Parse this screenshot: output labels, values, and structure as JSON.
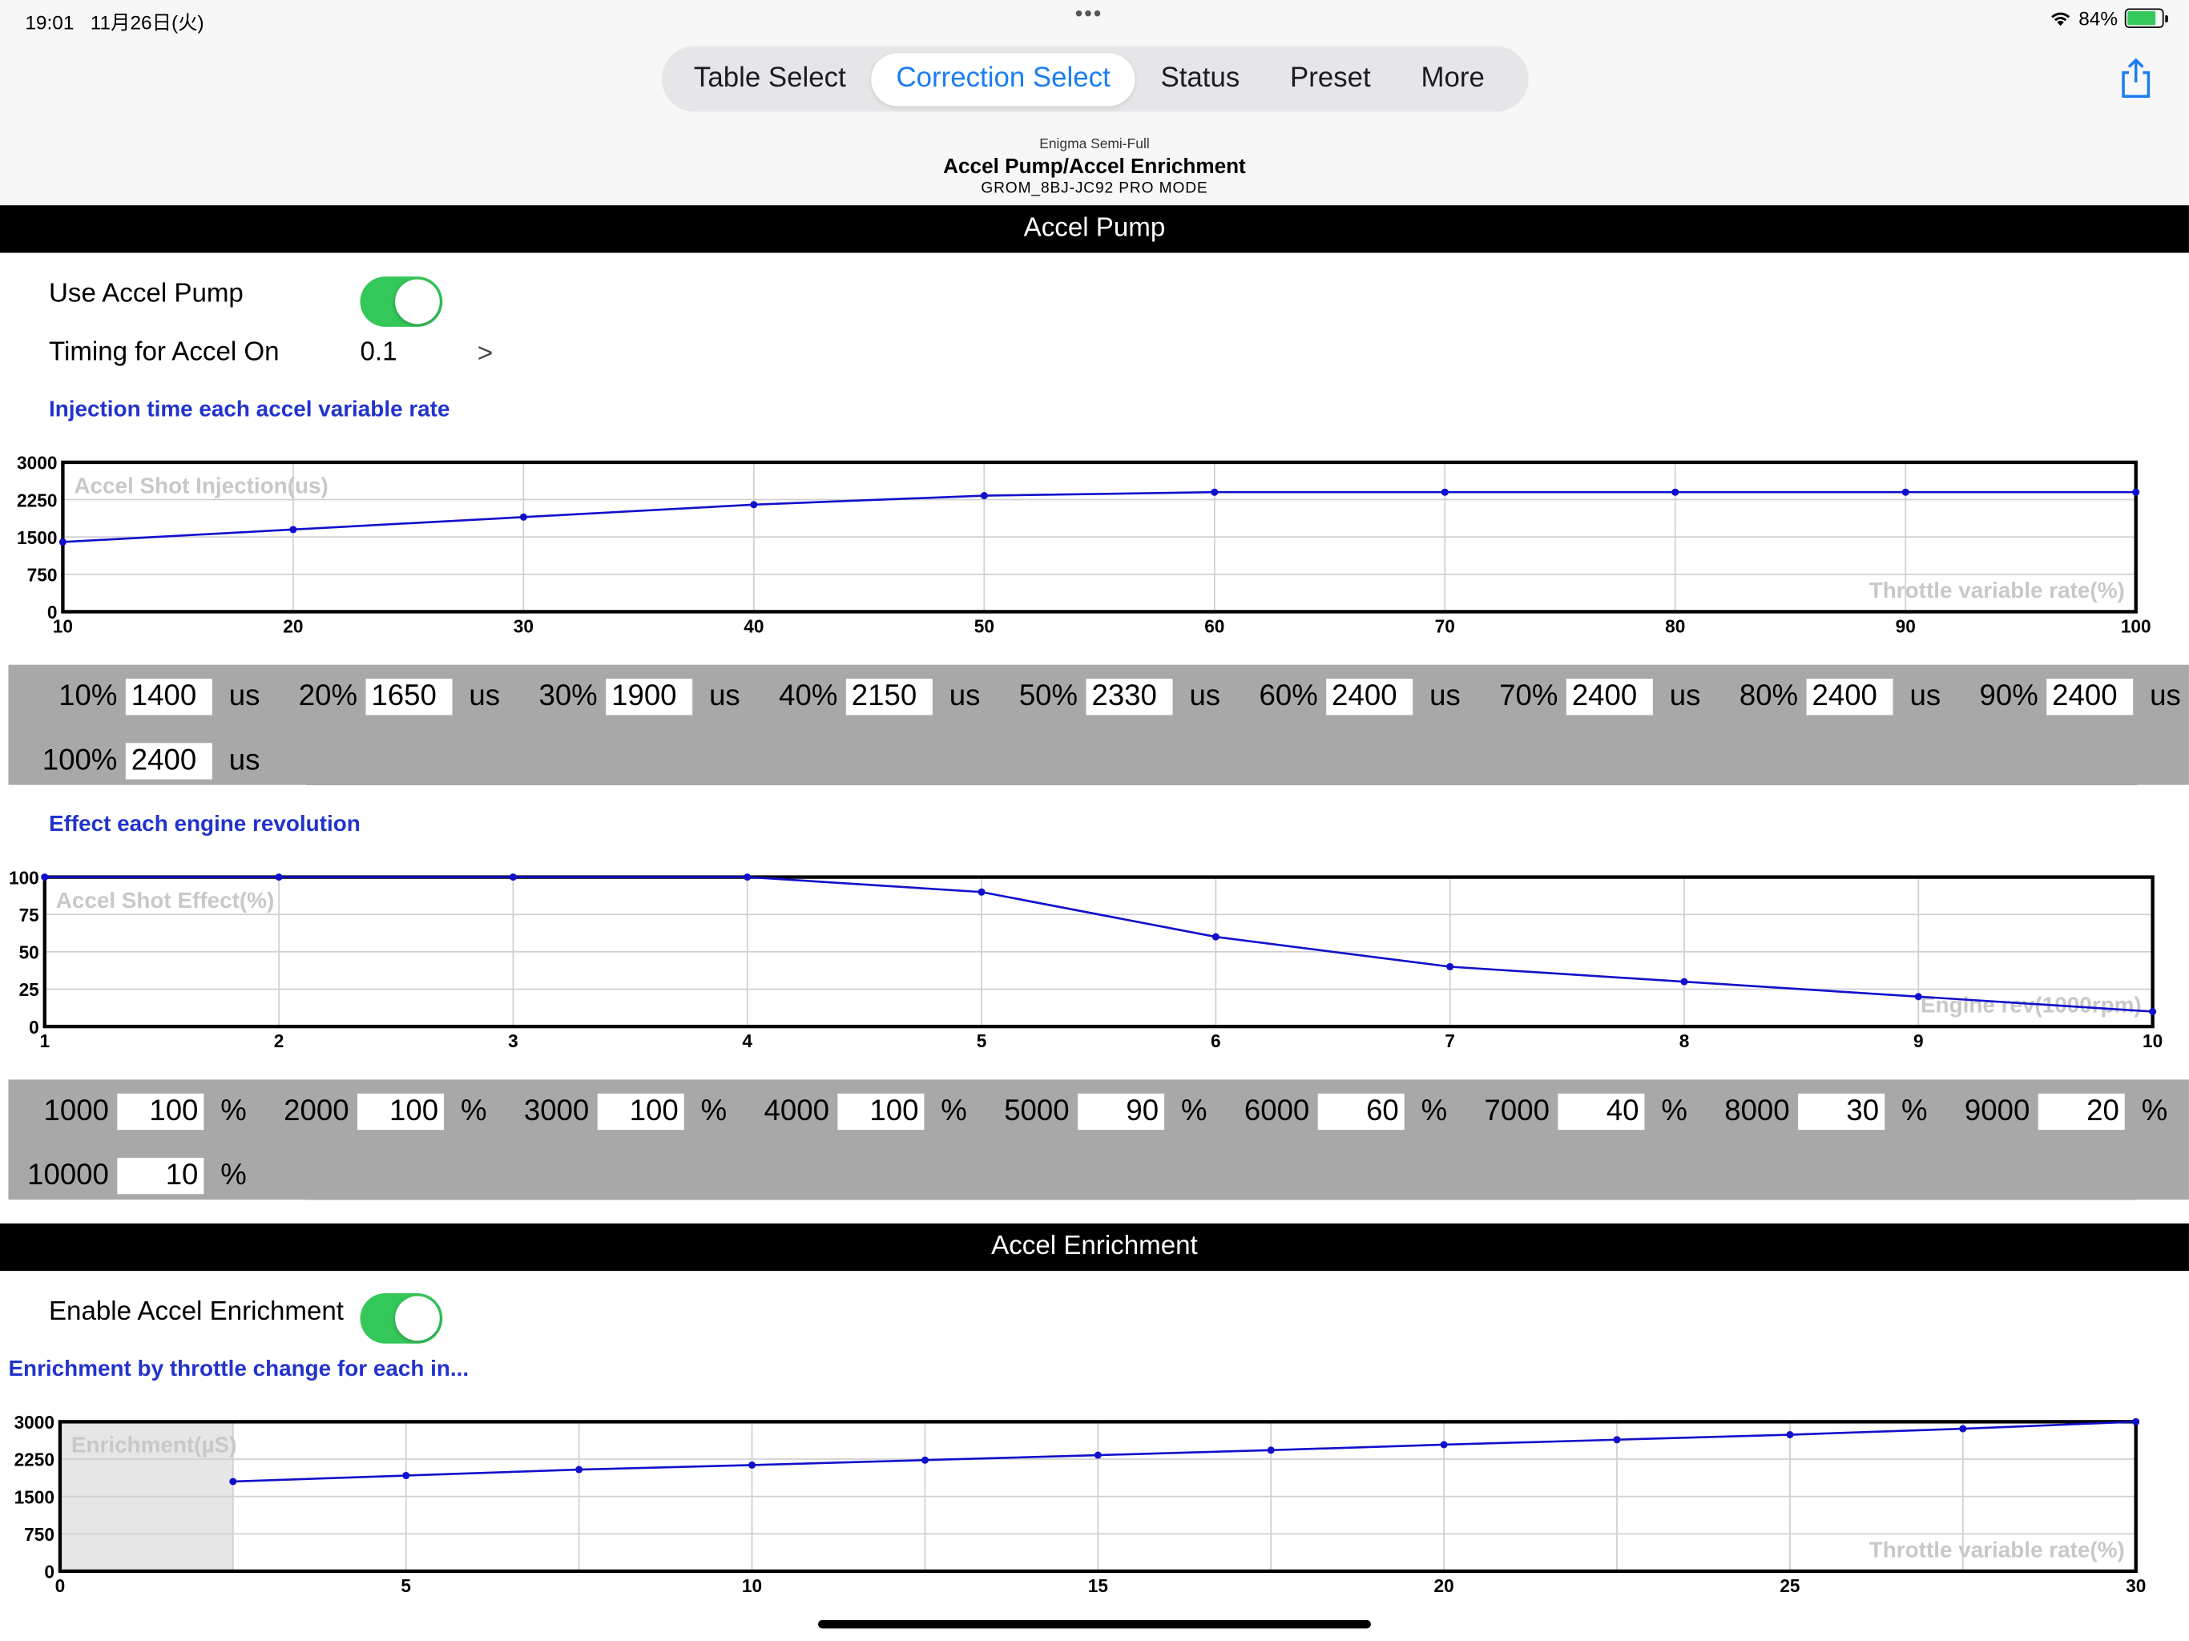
{
  "status_bar": {
    "time": "19:01",
    "date": "11月26日(火)",
    "battery_percent": "84%",
    "battery_level": 0.84
  },
  "tabs": [
    {
      "label": "Table Select",
      "active": false
    },
    {
      "label": "Correction Select",
      "active": true
    },
    {
      "label": "Status",
      "active": false
    },
    {
      "label": "Preset",
      "active": false
    },
    {
      "label": "More",
      "active": false
    }
  ],
  "title": {
    "sub": "Enigma Semi-Full",
    "main": "Accel Pump/Accel Enrichment",
    "model": "GROM_8BJ-JC92 PRO MODE"
  },
  "accel_pump": {
    "section_title": "Accel Pump",
    "use_label": "Use Accel Pump",
    "use_enabled": true,
    "timing_label": "Timing for Accel On",
    "timing_value": "0.1",
    "timing_chevron": ">",
    "injection_heading": "Injection time each accel variable rate",
    "effect_heading": "Effect each engine revolution",
    "injection_values": [
      {
        "label": "10%",
        "value": "1400",
        "unit": "us"
      },
      {
        "label": "20%",
        "value": "1650",
        "unit": "us"
      },
      {
        "label": "30%",
        "value": "1900",
        "unit": "us"
      },
      {
        "label": "40%",
        "value": "2150",
        "unit": "us"
      },
      {
        "label": "50%",
        "value": "2330",
        "unit": "us"
      },
      {
        "label": "60%",
        "value": "2400",
        "unit": "us"
      },
      {
        "label": "70%",
        "value": "2400",
        "unit": "us"
      },
      {
        "label": "80%",
        "value": "2400",
        "unit": "us"
      },
      {
        "label": "90%",
        "value": "2400",
        "unit": "us"
      },
      {
        "label": "100%",
        "value": "2400",
        "unit": "us"
      }
    ],
    "effect_values": [
      {
        "label": "1000",
        "value": "100",
        "unit": "%"
      },
      {
        "label": "2000",
        "value": "100",
        "unit": "%"
      },
      {
        "label": "3000",
        "value": "100",
        "unit": "%"
      },
      {
        "label": "4000",
        "value": "100",
        "unit": "%"
      },
      {
        "label": "5000",
        "value": "90",
        "unit": "%"
      },
      {
        "label": "6000",
        "value": "60",
        "unit": "%"
      },
      {
        "label": "7000",
        "value": "40",
        "unit": "%"
      },
      {
        "label": "8000",
        "value": "30",
        "unit": "%"
      },
      {
        "label": "9000",
        "value": "20",
        "unit": "%"
      },
      {
        "label": "10000",
        "value": "10",
        "unit": "%"
      }
    ]
  },
  "accel_enrichment": {
    "section_title": "Accel Enrichment",
    "enable_label": "Enable Accel Enrichment",
    "enable_enabled": true,
    "heading": "Enrichment by throttle change for each in..."
  },
  "chart_data": [
    {
      "type": "line",
      "ylabel": "Accel Shot Injection(us)",
      "xlabel": "Throttle variable rate(%)",
      "x": [
        10,
        20,
        30,
        40,
        50,
        60,
        70,
        80,
        90,
        100
      ],
      "y": [
        1400,
        1650,
        1900,
        2150,
        2330,
        2400,
        2400,
        2400,
        2400,
        2400
      ],
      "xticks": [
        "10",
        "20",
        "30",
        "40",
        "50",
        "60",
        "70",
        "80",
        "90",
        "100"
      ],
      "yticks": [
        "0",
        "750",
        "1500",
        "2250",
        "3000"
      ],
      "xlim": [
        10,
        100
      ],
      "ylim": [
        0,
        3000
      ],
      "grid": true,
      "line_color": "#1010cc"
    },
    {
      "type": "line",
      "ylabel": "Accel Shot Effect(%)",
      "xlabel": "Engine rev(1000rpm)",
      "x": [
        1,
        2,
        3,
        4,
        5,
        6,
        7,
        8,
        9,
        10
      ],
      "y": [
        100,
        100,
        100,
        100,
        90,
        60,
        40,
        30,
        20,
        10
      ],
      "xticks": [
        "1",
        "2",
        "3",
        "4",
        "5",
        "6",
        "7",
        "8",
        "9",
        "10"
      ],
      "yticks": [
        "0",
        "25",
        "50",
        "75",
        "100"
      ],
      "xlim": [
        1,
        10
      ],
      "ylim": [
        0,
        100
      ],
      "grid": true,
      "line_color": "#1010cc"
    },
    {
      "type": "line",
      "ylabel": "Enrichment(µS)",
      "xlabel": "Throttle variable rate(%)",
      "x": [
        2.5,
        5,
        7.5,
        10,
        12.5,
        15,
        17.5,
        20,
        22.5,
        25,
        27.5,
        30
      ],
      "y": [
        1800,
        1920,
        2040,
        2130,
        2230,
        2330,
        2430,
        2540,
        2640,
        2740,
        2860,
        3000
      ],
      "xticks": [
        "0",
        "5",
        "10",
        "15",
        "20",
        "25",
        "30"
      ],
      "yticks": [
        "0",
        "750",
        "1500",
        "2250",
        "3000"
      ],
      "xlim": [
        0,
        30
      ],
      "ylim": [
        0,
        3000
      ],
      "grid": true,
      "shaded_x_range": [
        0,
        2.5
      ],
      "line_color": "#1010cc"
    }
  ]
}
